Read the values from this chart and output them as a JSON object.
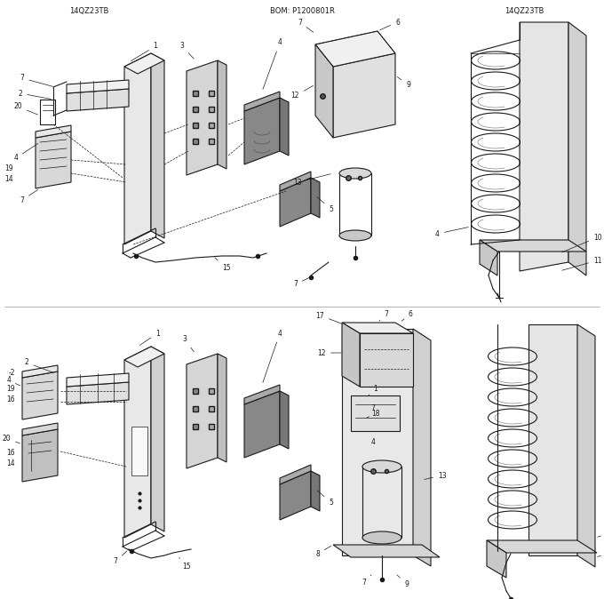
{
  "background_color": "#f5f5f5",
  "line_color": "#1a1a1a",
  "fig_width": 6.8,
  "fig_height": 6.74,
  "dpi": 100,
  "label_fontsize": 5.5,
  "header_left": "14QZ23TB",
  "header_mid": "BOM: P1200801R",
  "header_right": "14QZ23TB"
}
